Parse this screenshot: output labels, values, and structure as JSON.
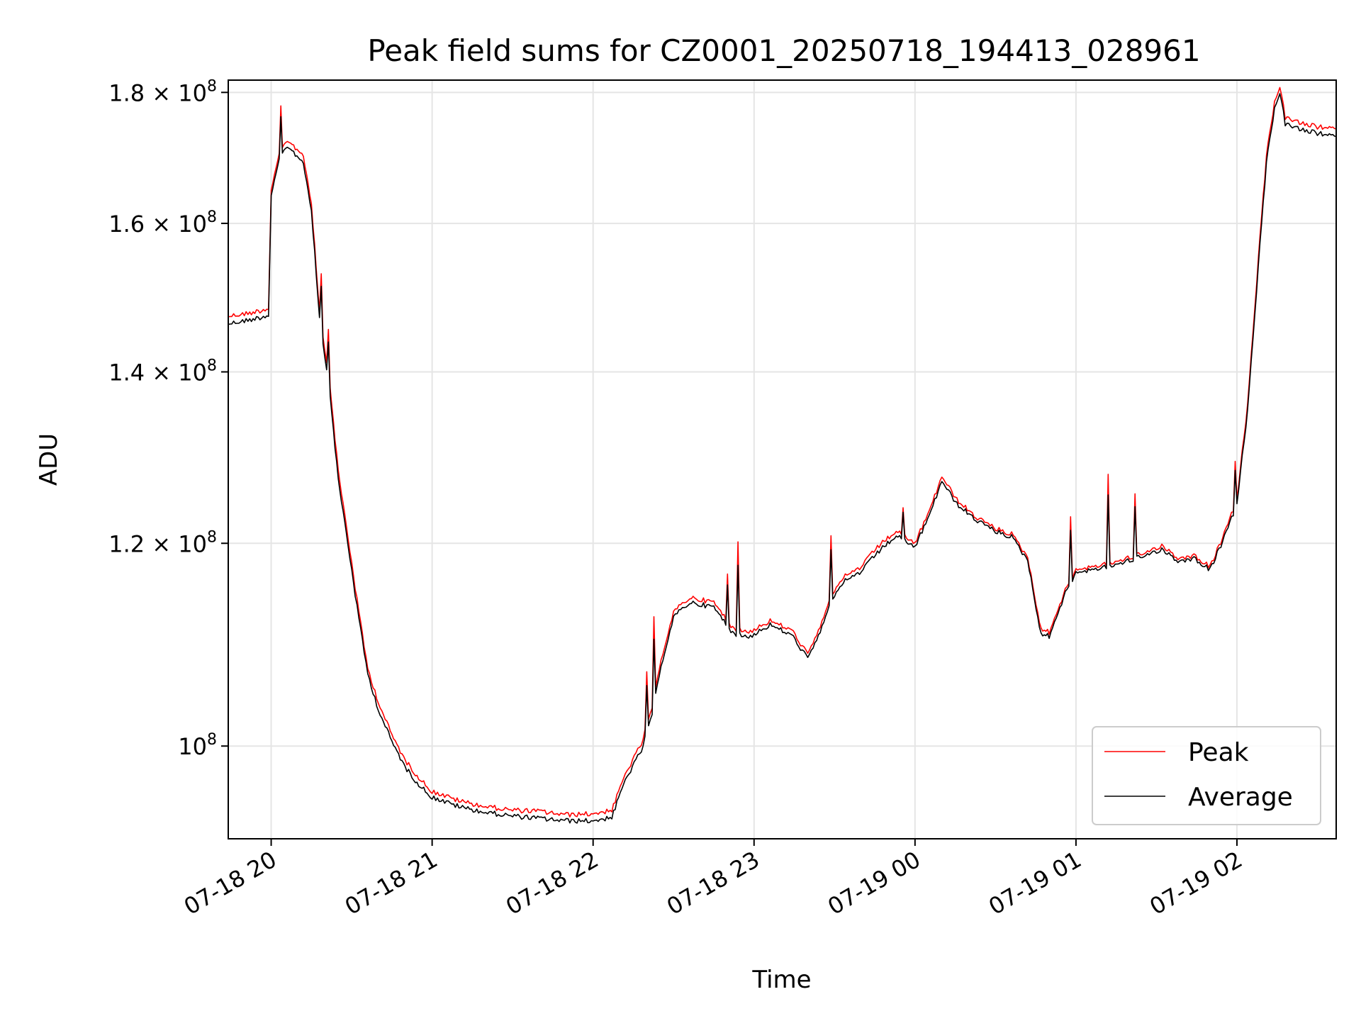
{
  "chart_data": {
    "type": "line",
    "title": "Peak field sums for CZ0001_20250718_194413_028961",
    "xlabel": "Time",
    "ylabel": "ADU",
    "y_scale": "log",
    "ylim": [
      92000000,
      182000000
    ],
    "xlim": [
      "2025-07-18 19:44",
      "2025-07-19 02:37"
    ],
    "grid": true,
    "legend_position": "lower right",
    "x_ticks": [
      {
        "value": "2025-07-18 20:00",
        "label": "07-18 20"
      },
      {
        "value": "2025-07-18 21:00",
        "label": "07-18 21"
      },
      {
        "value": "2025-07-18 22:00",
        "label": "07-18 22"
      },
      {
        "value": "2025-07-18 23:00",
        "label": "07-18 23"
      },
      {
        "value": "2025-07-19 00:00",
        "label": "07-19 00"
      },
      {
        "value": "2025-07-19 01:00",
        "label": "07-19 01"
      },
      {
        "value": "2025-07-19 02:00",
        "label": "07-19 02"
      }
    ],
    "y_ticks": [
      {
        "value": 100000000,
        "mantissa": "10",
        "exponent": "8"
      },
      {
        "value": 120000000,
        "mantissa": "1.2 × 10",
        "exponent": "8"
      },
      {
        "value": 140000000,
        "mantissa": "1.4 × 10",
        "exponent": "8"
      },
      {
        "value": 160000000,
        "mantissa": "1.6 × 10",
        "exponent": "8"
      },
      {
        "value": 180000000,
        "mantissa": "1.8 × 10",
        "exponent": "8"
      }
    ],
    "series": [
      {
        "name": "Peak",
        "color": "#ff0000",
        "points": [
          [
            "2025-07-18 19:44",
            147200000
          ],
          [
            "2025-07-18 19:52",
            147600000
          ],
          [
            "2025-07-18 19:59",
            148200000
          ],
          [
            "2025-07-18 20:00",
            165000000
          ],
          [
            "2025-07-18 20:03",
            170200000
          ],
          [
            "2025-07-18 20:06",
            172500000
          ],
          [
            "2025-07-18 20:09",
            171300000
          ],
          [
            "2025-07-18 20:12",
            170100000
          ],
          [
            "2025-07-18 20:15",
            163000000
          ],
          [
            "2025-07-18 20:18",
            148000000
          ],
          [
            "2025-07-18 20:22",
            138000000
          ],
          [
            "2025-07-18 20:25",
            128000000
          ],
          [
            "2025-07-18 20:28",
            122000000
          ],
          [
            "2025-07-18 20:32",
            114000000
          ],
          [
            "2025-07-18 20:36",
            107200000
          ],
          [
            "2025-07-18 20:40",
            104000000
          ],
          [
            "2025-07-18 20:45",
            101000000
          ],
          [
            "2025-07-18 20:50",
            98700000
          ],
          [
            "2025-07-18 20:55",
            97200000
          ],
          [
            "2025-07-18 21:00",
            96000000
          ],
          [
            "2025-07-18 21:10",
            95200000
          ],
          [
            "2025-07-18 21:20",
            94700000
          ],
          [
            "2025-07-18 21:30",
            94400000
          ],
          [
            "2025-07-18 21:40",
            94300000
          ],
          [
            "2025-07-18 21:50",
            94000000
          ],
          [
            "2025-07-18 22:00",
            94100000
          ],
          [
            "2025-07-18 22:07",
            94400000
          ],
          [
            "2025-07-18 22:12",
            97500000
          ],
          [
            "2025-07-18 22:18",
            100200000
          ],
          [
            "2025-07-18 22:22",
            103500000
          ],
          [
            "2025-07-18 22:26",
            108800000
          ],
          [
            "2025-07-18 22:30",
            112800000
          ],
          [
            "2025-07-18 22:36",
            114300000
          ],
          [
            "2025-07-18 22:45",
            113800000
          ],
          [
            "2025-07-18 22:52",
            111200000
          ],
          [
            "2025-07-18 22:58",
            110800000
          ],
          [
            "2025-07-18 23:06",
            111900000
          ],
          [
            "2025-07-18 23:14",
            111000000
          ],
          [
            "2025-07-18 23:20",
            108600000
          ],
          [
            "2025-07-18 23:24",
            110800000
          ],
          [
            "2025-07-18 23:28",
            114100000
          ],
          [
            "2025-07-18 23:34",
            116500000
          ],
          [
            "2025-07-18 23:40",
            117500000
          ],
          [
            "2025-07-18 23:46",
            119600000
          ],
          [
            "2025-07-18 23:53",
            121300000
          ],
          [
            "2025-07-19 00:00",
            120000000
          ],
          [
            "2025-07-19 00:06",
            124000000
          ],
          [
            "2025-07-19 00:10",
            127500000
          ],
          [
            "2025-07-19 00:15",
            125000000
          ],
          [
            "2025-07-19 00:22",
            123000000
          ],
          [
            "2025-07-19 00:30",
            121600000
          ],
          [
            "2025-07-19 00:36",
            121000000
          ],
          [
            "2025-07-19 00:42",
            118500000
          ],
          [
            "2025-07-19 00:47",
            111000000
          ],
          [
            "2025-07-19 00:50",
            110800000
          ],
          [
            "2025-07-19 00:56",
            115000000
          ],
          [
            "2025-07-19 01:00",
            117200000
          ],
          [
            "2025-07-19 01:10",
            117700000
          ],
          [
            "2025-07-19 01:18",
            118300000
          ],
          [
            "2025-07-19 01:26",
            119000000
          ],
          [
            "2025-07-19 01:32",
            119800000
          ],
          [
            "2025-07-19 01:38",
            118400000
          ],
          [
            "2025-07-19 01:44",
            118700000
          ],
          [
            "2025-07-19 01:50",
            117500000
          ],
          [
            "2025-07-19 01:56",
            121500000
          ],
          [
            "2025-07-19 02:00",
            124800000
          ],
          [
            "2025-07-19 02:04",
            136000000
          ],
          [
            "2025-07-19 02:08",
            155000000
          ],
          [
            "2025-07-19 02:11",
            170000000
          ],
          [
            "2025-07-19 02:14",
            178500000
          ],
          [
            "2025-07-19 02:16",
            181000000
          ],
          [
            "2025-07-19 02:18",
            176000000
          ],
          [
            "2025-07-19 02:24",
            175000000
          ],
          [
            "2025-07-19 02:30",
            174500000
          ],
          [
            "2025-07-19 02:37",
            174200000
          ]
        ]
      },
      {
        "name": "Average",
        "color": "#000000",
        "points": [
          [
            "2025-07-18 19:44",
            146200000
          ],
          [
            "2025-07-18 19:52",
            146700000
          ],
          [
            "2025-07-18 19:59",
            147300000
          ],
          [
            "2025-07-18 20:00",
            164200000
          ],
          [
            "2025-07-18 20:03",
            169400000
          ],
          [
            "2025-07-18 20:06",
            171600000
          ],
          [
            "2025-07-18 20:09",
            170300000
          ],
          [
            "2025-07-18 20:12",
            169000000
          ],
          [
            "2025-07-18 20:15",
            162000000
          ],
          [
            "2025-07-18 20:18",
            147200000
          ],
          [
            "2025-07-18 20:22",
            137000000
          ],
          [
            "2025-07-18 20:25",
            127000000
          ],
          [
            "2025-07-18 20:28",
            121200000
          ],
          [
            "2025-07-18 20:32",
            113300000
          ],
          [
            "2025-07-18 20:36",
            106700000
          ],
          [
            "2025-07-18 20:40",
            103300000
          ],
          [
            "2025-07-18 20:45",
            100400000
          ],
          [
            "2025-07-18 20:50",
            98100000
          ],
          [
            "2025-07-18 20:55",
            96600000
          ],
          [
            "2025-07-18 21:00",
            95500000
          ],
          [
            "2025-07-18 21:10",
            94700000
          ],
          [
            "2025-07-18 21:20",
            94200000
          ],
          [
            "2025-07-18 21:30",
            93900000
          ],
          [
            "2025-07-18 21:40",
            93700000
          ],
          [
            "2025-07-18 21:50",
            93500000
          ],
          [
            "2025-07-18 22:00",
            93500000
          ],
          [
            "2025-07-18 22:07",
            93800000
          ],
          [
            "2025-07-18 22:12",
            97000000
          ],
          [
            "2025-07-18 22:18",
            99600000
          ],
          [
            "2025-07-18 22:22",
            102900000
          ],
          [
            "2025-07-18 22:26",
            108200000
          ],
          [
            "2025-07-18 22:30",
            112300000
          ],
          [
            "2025-07-18 22:36",
            113800000
          ],
          [
            "2025-07-18 22:45",
            113300000
          ],
          [
            "2025-07-18 22:52",
            110700000
          ],
          [
            "2025-07-18 22:58",
            110300000
          ],
          [
            "2025-07-18 23:06",
            111500000
          ],
          [
            "2025-07-18 23:14",
            110500000
          ],
          [
            "2025-07-18 23:20",
            108200000
          ],
          [
            "2025-07-18 23:24",
            110300000
          ],
          [
            "2025-07-18 23:28",
            113600000
          ],
          [
            "2025-07-18 23:34",
            116000000
          ],
          [
            "2025-07-18 23:40",
            117000000
          ],
          [
            "2025-07-18 23:46",
            119000000
          ],
          [
            "2025-07-18 23:53",
            120800000
          ],
          [
            "2025-07-19 00:00",
            119600000
          ],
          [
            "2025-07-19 00:06",
            123500000
          ],
          [
            "2025-07-19 00:10",
            127000000
          ],
          [
            "2025-07-19 00:15",
            124500000
          ],
          [
            "2025-07-19 00:22",
            122700000
          ],
          [
            "2025-07-19 00:30",
            121300000
          ],
          [
            "2025-07-19 00:36",
            120700000
          ],
          [
            "2025-07-19 00:42",
            118200000
          ],
          [
            "2025-07-19 00:47",
            110500000
          ],
          [
            "2025-07-19 00:50",
            110400000
          ],
          [
            "2025-07-19 00:56",
            114700000
          ],
          [
            "2025-07-19 01:00",
            116900000
          ],
          [
            "2025-07-19 01:10",
            117400000
          ],
          [
            "2025-07-19 01:18",
            118000000
          ],
          [
            "2025-07-19 01:26",
            118700000
          ],
          [
            "2025-07-19 01:32",
            119400000
          ],
          [
            "2025-07-19 01:38",
            118100000
          ],
          [
            "2025-07-19 01:44",
            118400000
          ],
          [
            "2025-07-19 01:50",
            117200000
          ],
          [
            "2025-07-19 01:56",
            121100000
          ],
          [
            "2025-07-19 02:00",
            124300000
          ],
          [
            "2025-07-19 02:04",
            135300000
          ],
          [
            "2025-07-19 02:08",
            154000000
          ],
          [
            "2025-07-19 02:11",
            169000000
          ],
          [
            "2025-07-19 02:14",
            177500000
          ],
          [
            "2025-07-19 02:16",
            180000000
          ],
          [
            "2025-07-19 02:18",
            175000000
          ],
          [
            "2025-07-19 02:24",
            174000000
          ],
          [
            "2025-07-19 02:30",
            173500000
          ],
          [
            "2025-07-19 02:37",
            173000000
          ]
        ]
      }
    ]
  }
}
